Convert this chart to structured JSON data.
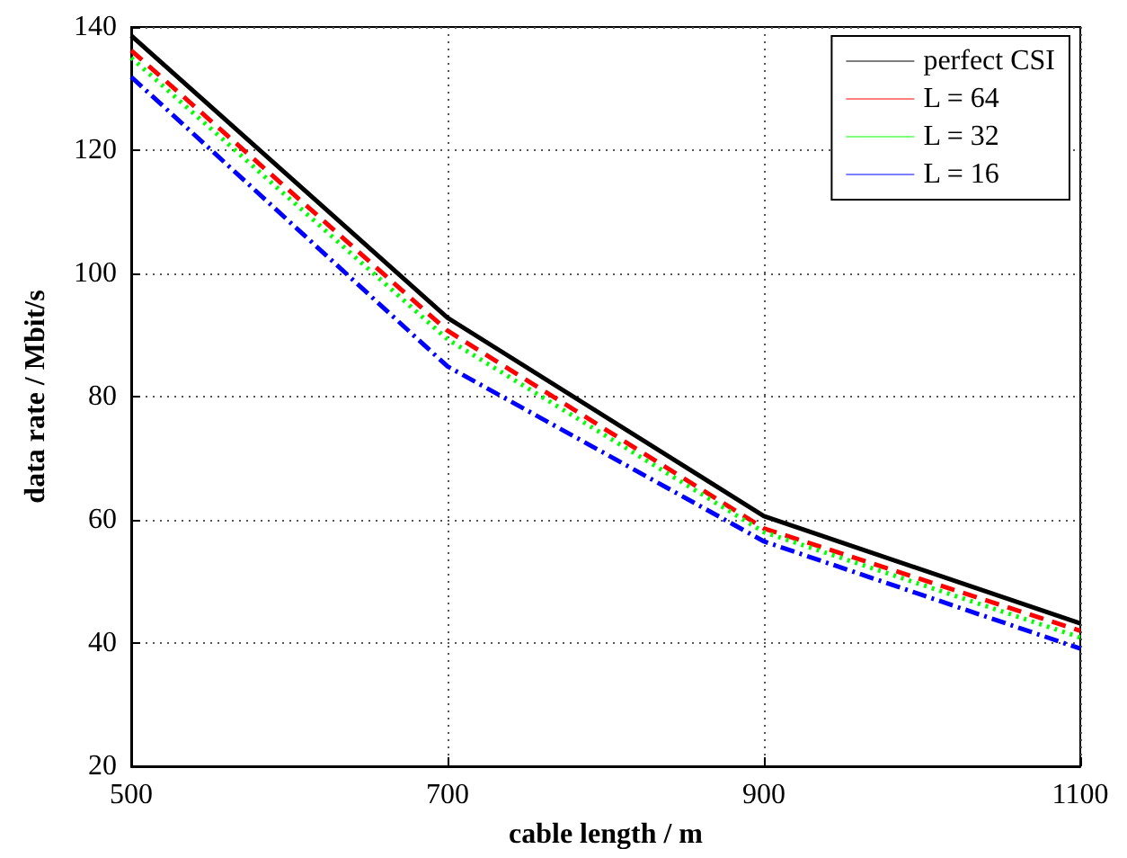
{
  "chart_data": {
    "type": "line",
    "xlabel": "cable length / m",
    "ylabel": "data rate / Mbit/s",
    "x": [
      500,
      700,
      900,
      1100
    ],
    "xlim": [
      500,
      1100
    ],
    "xticks": [
      500,
      700,
      900,
      1100
    ],
    "ylim": [
      20,
      140
    ],
    "yticks": [
      20,
      40,
      60,
      80,
      100,
      120,
      140
    ],
    "grid": true,
    "legend": "top right",
    "marker": "none",
    "series": [
      {
        "name": "perfect CSI",
        "color": "#000000",
        "line_style": "solid",
        "values": [
          138.6,
          92.8,
          60.6,
          43.2
        ]
      },
      {
        "name": "L = 64",
        "color": "#ff0000",
        "line_style": "dashed",
        "values": [
          136.2,
          90.7,
          58.6,
          42
        ]
      },
      {
        "name": "L = 32",
        "color": "#00ff00",
        "line_style": "dotted",
        "values": [
          135,
          89.3,
          58,
          40.9
        ]
      },
      {
        "name": "L = 16",
        "color": "#0000ff",
        "line_style": "dashdot",
        "values": [
          131.9,
          84.9,
          56.5,
          39.1
        ]
      }
    ]
  }
}
